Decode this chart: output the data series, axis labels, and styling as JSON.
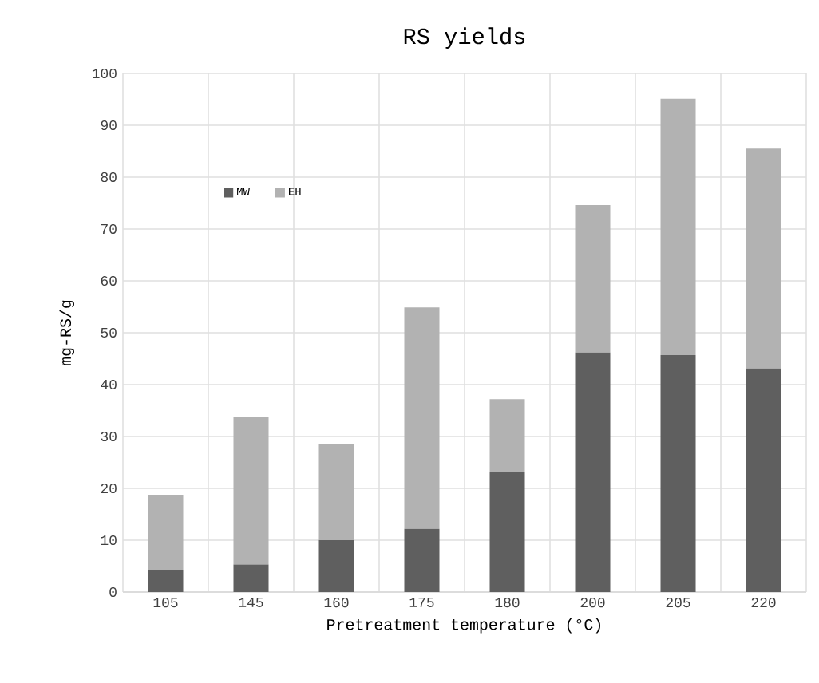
{
  "chart_data": {
    "type": "bar",
    "title": "RS yields",
    "xlabel": "Pretreatment temperature (°C)",
    "ylabel": "mg-RS/g",
    "categories": [
      "105",
      "145",
      "160",
      "175",
      "180",
      "200",
      "205",
      "220"
    ],
    "stacked": true,
    "series": [
      {
        "name": "MW",
        "color": "#5f5f5f",
        "values": [
          4.2,
          5.3,
          10.0,
          12.2,
          23.2,
          46.2,
          45.7,
          43.1
        ]
      },
      {
        "name": "EH",
        "color": "#b2b2b2",
        "values": [
          14.5,
          28.5,
          18.6,
          42.7,
          14.0,
          28.4,
          49.4,
          42.4
        ]
      }
    ],
    "ylim": [
      0,
      100
    ],
    "yticks": [
      0,
      10,
      20,
      30,
      40,
      50,
      60,
      70,
      80,
      90,
      100
    ],
    "grid": true,
    "legend": "top left"
  }
}
